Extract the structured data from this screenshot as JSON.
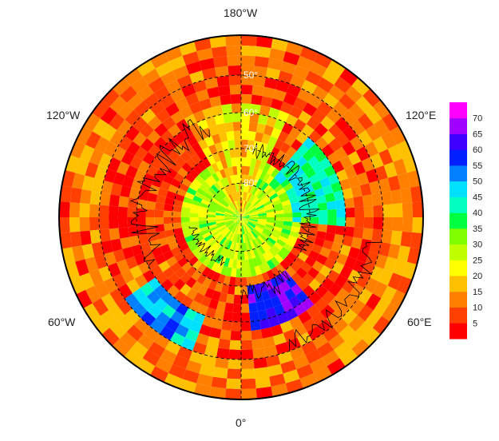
{
  "projection": "north-polar-stereographic",
  "longitude_labels": {
    "top": "180°W",
    "bottom": "0°",
    "upper_left": "120°W",
    "upper_right": "120°E",
    "lower_left": "60°W",
    "lower_right": "60°E"
  },
  "latitude_labels": [
    "50°",
    "60°",
    "70°",
    "80°"
  ],
  "colorbar": {
    "ticks": [
      "5",
      "10",
      "15",
      "20",
      "25",
      "30",
      "35",
      "40",
      "45",
      "50",
      "55",
      "60",
      "65",
      "70"
    ],
    "range": [
      0,
      75
    ],
    "colors": [
      "#ff0000",
      "#ff4000",
      "#ff8000",
      "#ffc000",
      "#ffff00",
      "#c0ff00",
      "#80ff00",
      "#00ff40",
      "#00ffc0",
      "#00e0ff",
      "#0080ff",
      "#0020ff",
      "#4000ff",
      "#a000ff",
      "#ff00ff"
    ]
  },
  "colors": {
    "frame": "#000000",
    "graticule": "#000000",
    "missing": "#808080"
  }
}
